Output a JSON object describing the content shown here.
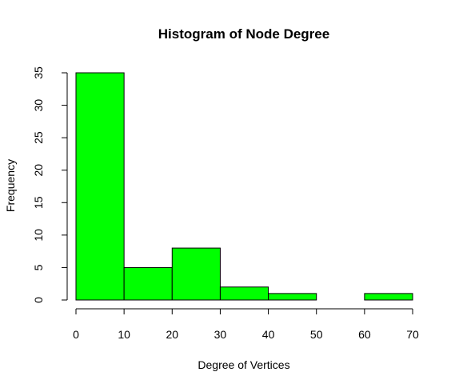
{
  "chart_data": {
    "type": "bar",
    "subtype": "histogram",
    "title": "Histogram of Node Degree",
    "xlabel": "Degree of Vertices",
    "ylabel": "Frequency",
    "bins": [
      {
        "from": 0,
        "to": 10,
        "count": 35
      },
      {
        "from": 10,
        "to": 20,
        "count": 5
      },
      {
        "from": 20,
        "to": 30,
        "count": 8
      },
      {
        "from": 30,
        "to": 40,
        "count": 2
      },
      {
        "from": 40,
        "to": 50,
        "count": 1
      },
      {
        "from": 50,
        "to": 60,
        "count": 0
      },
      {
        "from": 60,
        "to": 70,
        "count": 1
      }
    ],
    "xlim": [
      0,
      70
    ],
    "ylim": [
      0,
      35
    ],
    "xticks": [
      "0",
      "10",
      "20",
      "30",
      "40",
      "50",
      "60",
      "70"
    ],
    "yticks": [
      "0",
      "5",
      "10",
      "15",
      "20",
      "25",
      "30",
      "35"
    ],
    "bar_color": "#00ff00",
    "border_color": "#000000",
    "grid": false,
    "legend": "none"
  }
}
